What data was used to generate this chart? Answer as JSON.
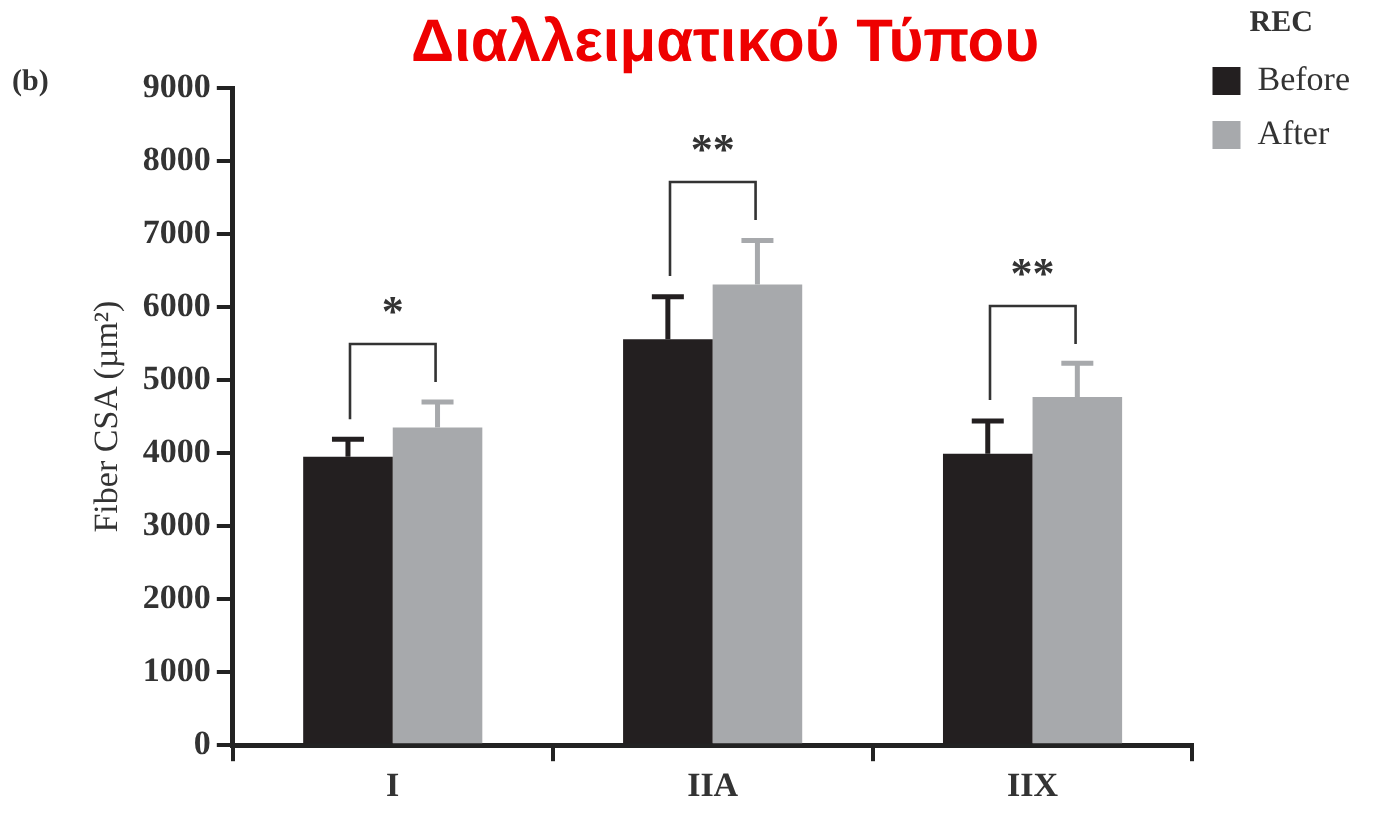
{
  "chart_data": {
    "type": "bar",
    "title": "Διαλλειματικού Τύπου",
    "ylabel": "Fiber CSA (µm²)",
    "legend_title": "REC",
    "categories": [
      "I",
      "IIA",
      "IIX"
    ],
    "series": [
      {
        "name": "Before",
        "color": "#231f20",
        "values": [
          3950,
          5560,
          3990
        ],
        "errors": [
          240,
          580,
          450
        ]
      },
      {
        "name": "After",
        "color": "#a7a9ac",
        "values": [
          4350,
          6310,
          4770
        ],
        "errors": [
          350,
          600,
          460
        ]
      }
    ],
    "ylim": [
      0,
      9000
    ],
    "yticks": [
      0,
      1000,
      2000,
      3000,
      4000,
      5000,
      6000,
      7000,
      8000,
      9000
    ],
    "annotations": [
      "(b)",
      "*",
      "**",
      "**"
    ],
    "grid": false,
    "legend": "top right"
  }
}
